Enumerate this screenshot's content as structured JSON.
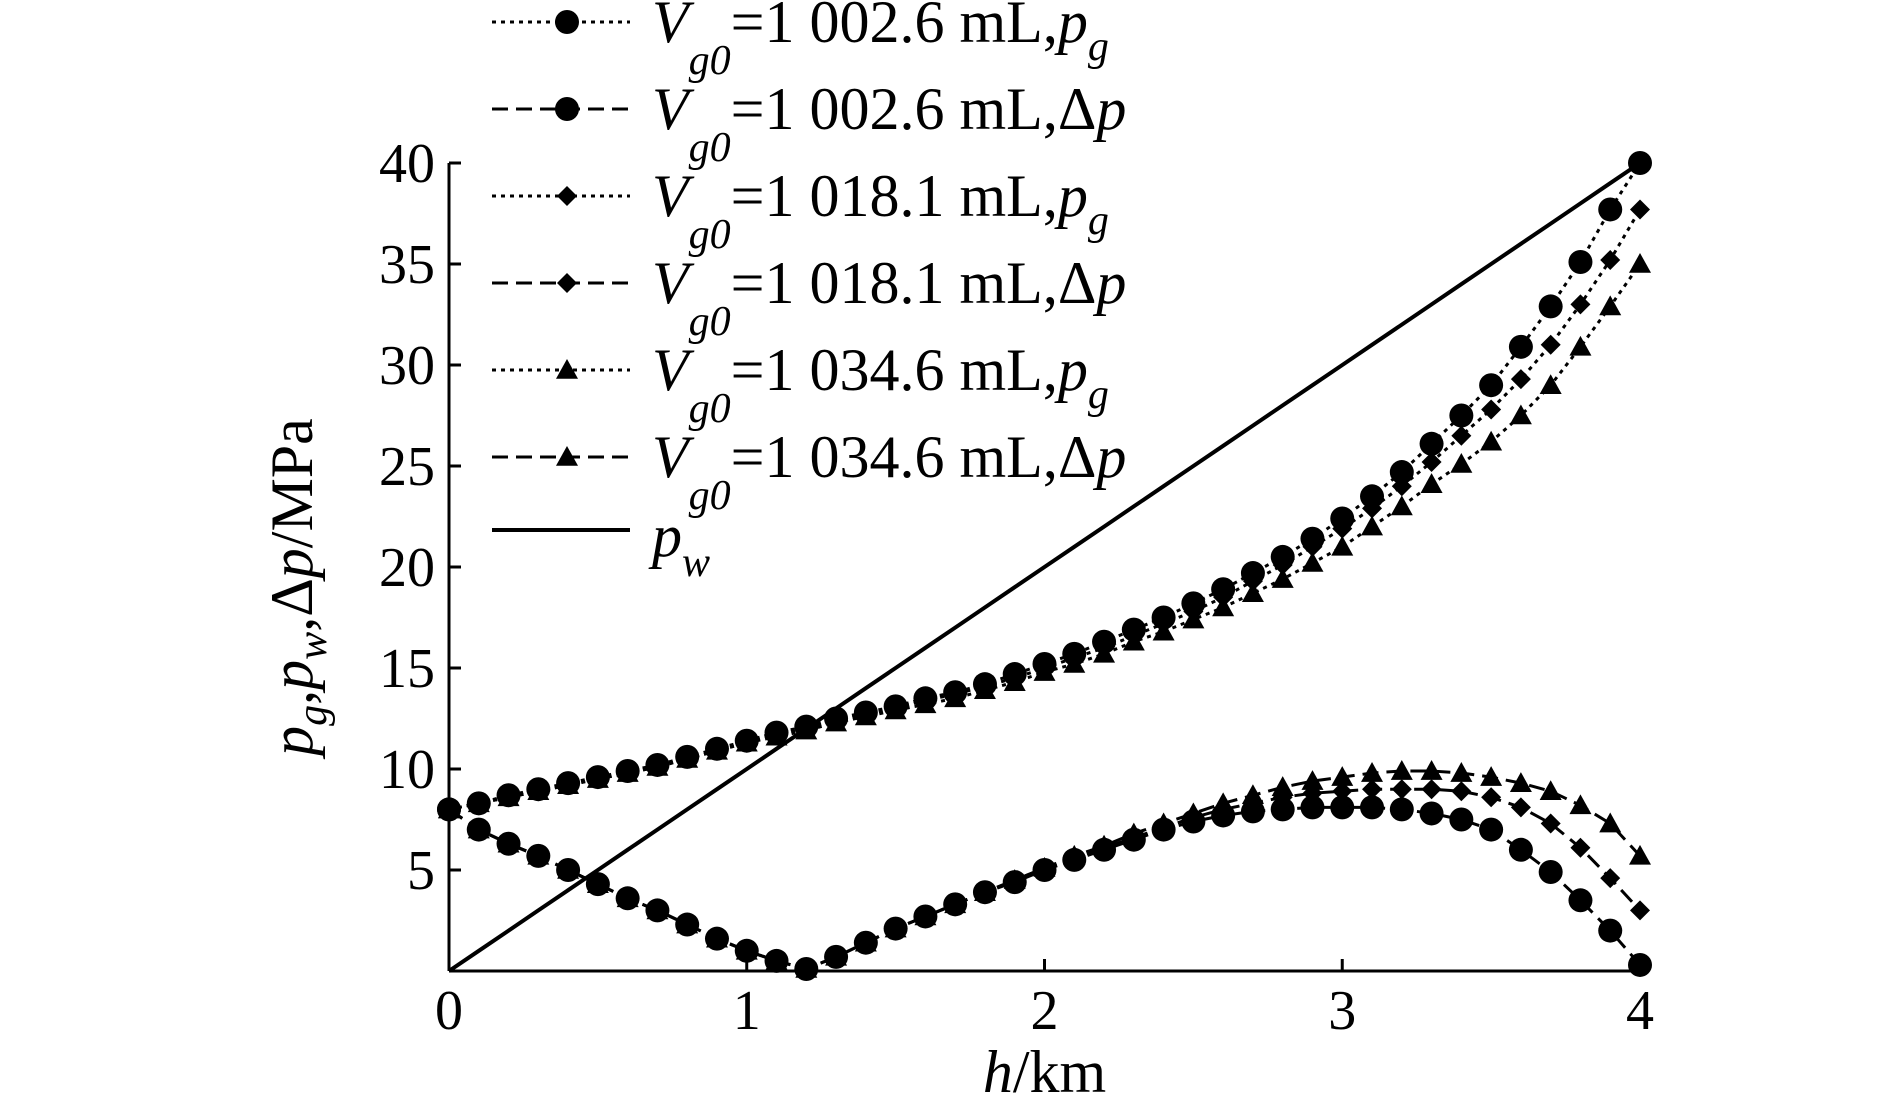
{
  "chart_data": {
    "type": "line",
    "xlabel": {
      "var": "h",
      "unit": "/km"
    },
    "ylabel": {
      "parts": [
        {
          "t": "p",
          "s": "italic"
        },
        {
          "t": "g",
          "s": "sub"
        },
        {
          "t": ",",
          "s": "normal"
        },
        {
          "t": "p",
          "s": "italic"
        },
        {
          "t": "w",
          "s": "sub"
        },
        {
          "t": ",Δ",
          "s": "normal"
        },
        {
          "t": "p",
          "s": "italic"
        },
        {
          "t": "/MPa",
          "s": "normal"
        }
      ]
    },
    "xlim": [
      0,
      4
    ],
    "ylim": [
      0,
      40
    ],
    "xticks": [
      0,
      1,
      2,
      3,
      4
    ],
    "xtick_labels": [
      "0",
      "1",
      "2",
      "3",
      "4"
    ],
    "yticks": [
      5,
      10,
      15,
      20,
      25,
      30,
      35,
      40
    ],
    "ytick_labels": [
      "5",
      "10",
      "15",
      "20",
      "25",
      "30",
      "35",
      "40"
    ],
    "x": [
      0,
      0.1,
      0.2,
      0.3,
      0.4,
      0.5,
      0.6,
      0.7,
      0.8,
      0.9,
      1.0,
      1.1,
      1.2,
      1.3,
      1.4,
      1.5,
      1.6,
      1.7,
      1.8,
      1.9,
      2.0,
      2.1,
      2.2,
      2.3,
      2.4,
      2.5,
      2.6,
      2.7,
      2.8,
      2.9,
      3.0,
      3.1,
      3.2,
      3.3,
      3.4,
      3.5,
      3.6,
      3.7,
      3.8,
      3.9,
      4.0
    ],
    "series": [
      {
        "name": "V_g0=1 002.6 mL,p_g",
        "vol": "1 002.6 mL,",
        "var": "p",
        "varsub": "g",
        "dash": "dotted",
        "marker": "circle",
        "values": [
          8.0,
          8.3,
          8.7,
          9.0,
          9.3,
          9.6,
          9.9,
          10.2,
          10.6,
          11.0,
          11.4,
          11.8,
          12.1,
          12.5,
          12.8,
          13.1,
          13.5,
          13.8,
          14.2,
          14.7,
          15.2,
          15.7,
          16.3,
          16.9,
          17.5,
          18.2,
          18.9,
          19.7,
          20.5,
          21.4,
          22.4,
          23.5,
          24.7,
          26.1,
          27.5,
          29.0,
          30.9,
          32.9,
          35.1,
          37.7,
          40.0
        ]
      },
      {
        "name": "V_g0=1 002.6 mL,Δp",
        "vol": "1 002.6 mL,",
        "var": "Δp",
        "varsub": "",
        "dash": "dashed",
        "marker": "circle",
        "values": [
          8.0,
          7.0,
          6.3,
          5.7,
          5.0,
          4.3,
          3.6,
          3.0,
          2.3,
          1.6,
          1.0,
          0.5,
          0.1,
          0.7,
          1.4,
          2.1,
          2.7,
          3.3,
          3.9,
          4.4,
          5.0,
          5.5,
          6.0,
          6.5,
          7.0,
          7.4,
          7.7,
          7.9,
          8.0,
          8.1,
          8.1,
          8.1,
          8.0,
          7.8,
          7.5,
          7.0,
          6.0,
          4.9,
          3.5,
          2.0,
          0.3
        ]
      },
      {
        "name": "V_g0=1 018.1 mL,p_g",
        "vol": "1 018.1 mL,",
        "var": "p",
        "varsub": "g",
        "dash": "dotted",
        "marker": "diamond",
        "values": [
          8.0,
          8.3,
          8.6,
          8.9,
          9.2,
          9.5,
          9.8,
          10.1,
          10.5,
          10.9,
          11.3,
          11.7,
          12.0,
          12.4,
          12.7,
          13.0,
          13.4,
          13.7,
          14.1,
          14.5,
          15.0,
          15.5,
          16.0,
          16.6,
          17.2,
          17.8,
          18.5,
          19.3,
          20.1,
          21.0,
          21.9,
          22.9,
          24.0,
          25.2,
          26.5,
          27.8,
          29.3,
          31.0,
          33.0,
          35.2,
          37.7
        ]
      },
      {
        "name": "V_g0=1 018.1 mL,Δp",
        "vol": "1 018.1 mL,",
        "var": "Δp",
        "varsub": "",
        "dash": "dashed",
        "marker": "diamond",
        "values": [
          8.0,
          7.0,
          6.3,
          5.7,
          5.0,
          4.3,
          3.6,
          3.0,
          2.3,
          1.6,
          1.0,
          0.5,
          0.1,
          0.7,
          1.4,
          2.1,
          2.7,
          3.3,
          3.9,
          4.5,
          5.1,
          5.6,
          6.1,
          6.6,
          7.1,
          7.6,
          8.0,
          8.3,
          8.6,
          8.8,
          8.9,
          9.0,
          9.0,
          9.0,
          8.9,
          8.6,
          8.1,
          7.3,
          6.1,
          4.6,
          3.0
        ]
      },
      {
        "name": "V_g0=1 034.6 mL,p_g",
        "vol": "1 034.6 mL,",
        "var": "p",
        "varsub": "g",
        "dash": "dotted",
        "marker": "triangle",
        "values": [
          8.0,
          8.3,
          8.6,
          8.9,
          9.2,
          9.5,
          9.8,
          10.1,
          10.5,
          10.9,
          11.3,
          11.6,
          11.9,
          12.3,
          12.6,
          12.9,
          13.2,
          13.5,
          13.9,
          14.3,
          14.8,
          15.2,
          15.7,
          16.3,
          16.8,
          17.4,
          18.0,
          18.7,
          19.4,
          20.2,
          21.0,
          22.0,
          23.0,
          24.1,
          25.1,
          26.2,
          27.5,
          29.0,
          30.9,
          32.9,
          35.0
        ]
      },
      {
        "name": "V_g0=1 034.6 mL,Δp",
        "vol": "1 034.6 mL,",
        "var": "Δp",
        "varsub": "",
        "dash": "dashed",
        "marker": "triangle",
        "values": [
          8.0,
          7.0,
          6.3,
          5.7,
          5.0,
          4.3,
          3.6,
          3.0,
          2.3,
          1.6,
          1.0,
          0.5,
          0.1,
          0.7,
          1.4,
          2.1,
          2.7,
          3.3,
          3.9,
          4.5,
          5.1,
          5.7,
          6.2,
          6.8,
          7.3,
          7.8,
          8.3,
          8.7,
          9.1,
          9.4,
          9.6,
          9.8,
          9.9,
          9.9,
          9.8,
          9.6,
          9.3,
          8.9,
          8.2,
          7.3,
          5.7
        ]
      },
      {
        "name": "p_w",
        "vol": "",
        "var": "p",
        "varsub": "w",
        "dash": "solid",
        "marker": "none",
        "values": [
          0,
          1,
          2,
          3,
          4,
          5,
          6,
          7,
          8,
          9,
          10,
          11,
          12,
          13,
          14,
          15,
          16,
          17,
          18,
          19,
          20,
          21,
          22,
          23,
          24,
          25,
          26,
          27,
          28,
          29,
          30,
          31,
          32,
          33,
          34,
          35,
          36,
          37,
          38,
          39,
          40
        ]
      }
    ],
    "legend": {
      "position": "top-left, above plot",
      "vprefix": "V",
      "vsub": "g0",
      "equals": "="
    }
  },
  "colors": {
    "ink": "#000000",
    "background": "#ffffff"
  }
}
